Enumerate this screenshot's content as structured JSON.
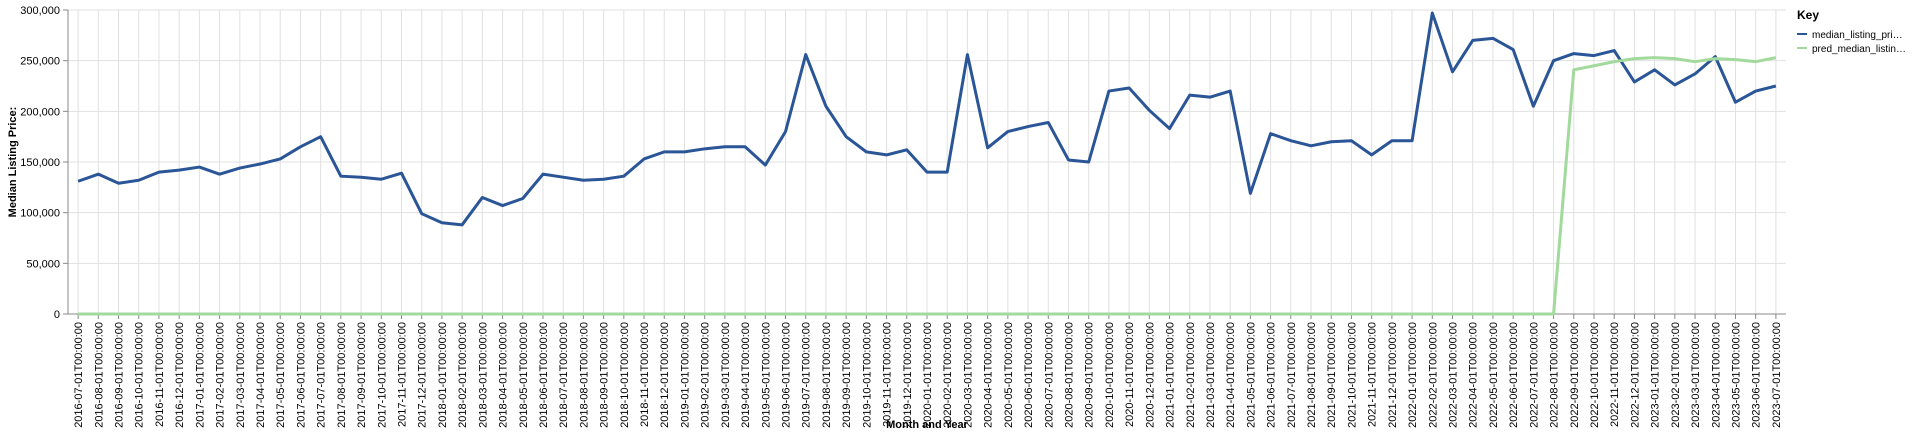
{
  "chart_data": {
    "type": "line",
    "x_label": "Month and Year",
    "y_label": "Median Listing Price:",
    "legend_title": "Key",
    "legend_position": "right",
    "grid": true,
    "categories": [
      "2016-07-01T00:00:00",
      "2016-08-01T00:00:00",
      "2016-09-01T00:00:00",
      "2016-10-01T00:00:00",
      "2016-11-01T00:00:00",
      "2016-12-01T00:00:00",
      "2017-01-01T00:00:00",
      "2017-02-01T00:00:00",
      "2017-03-01T00:00:00",
      "2017-04-01T00:00:00",
      "2017-05-01T00:00:00",
      "2017-06-01T00:00:00",
      "2017-07-01T00:00:00",
      "2017-08-01T00:00:00",
      "2017-09-01T00:00:00",
      "2017-10-01T00:00:00",
      "2017-11-01T00:00:00",
      "2017-12-01T00:00:00",
      "2018-01-01T00:00:00",
      "2018-02-01T00:00:00",
      "2018-03-01T00:00:00",
      "2018-04-01T00:00:00",
      "2018-05-01T00:00:00",
      "2018-06-01T00:00:00",
      "2018-07-01T00:00:00",
      "2018-08-01T00:00:00",
      "2018-09-01T00:00:00",
      "2018-10-01T00:00:00",
      "2018-11-01T00:00:00",
      "2018-12-01T00:00:00",
      "2019-01-01T00:00:00",
      "2019-02-01T00:00:00",
      "2019-03-01T00:00:00",
      "2019-04-01T00:00:00",
      "2019-05-01T00:00:00",
      "2019-06-01T00:00:00",
      "2019-07-01T00:00:00",
      "2019-08-01T00:00:00",
      "2019-09-01T00:00:00",
      "2019-10-01T00:00:00",
      "2019-11-01T00:00:00",
      "2019-12-01T00:00:00",
      "2020-01-01T00:00:00",
      "2020-02-01T00:00:00",
      "2020-03-01T00:00:00",
      "2020-04-01T00:00:00",
      "2020-05-01T00:00:00",
      "2020-06-01T00:00:00",
      "2020-07-01T00:00:00",
      "2020-08-01T00:00:00",
      "2020-09-01T00:00:00",
      "2020-10-01T00:00:00",
      "2020-11-01T00:00:00",
      "2020-12-01T00:00:00",
      "2021-01-01T00:00:00",
      "2021-02-01T00:00:00",
      "2021-03-01T00:00:00",
      "2021-04-01T00:00:00",
      "2021-05-01T00:00:00",
      "2021-06-01T00:00:00",
      "2021-07-01T00:00:00",
      "2021-08-01T00:00:00",
      "2021-09-01T00:00:00",
      "2021-10-01T00:00:00",
      "2021-11-01T00:00:00",
      "2021-12-01T00:00:00",
      "2022-01-01T00:00:00",
      "2022-02-01T00:00:00",
      "2022-03-01T00:00:00",
      "2022-04-01T00:00:00",
      "2022-05-01T00:00:00",
      "2022-06-01T00:00:00",
      "2022-07-01T00:00:00",
      "2022-08-01T00:00:00",
      "2022-09-01T00:00:00",
      "2022-10-01T00:00:00",
      "2022-11-01T00:00:00",
      "2022-12-01T00:00:00",
      "2023-01-01T00:00:00",
      "2023-02-01T00:00:00",
      "2023-03-01T00:00:00",
      "2023-04-01T00:00:00",
      "2023-05-01T00:00:00",
      "2023-06-01T00:00:00",
      "2023-07-01T00:00:00"
    ],
    "series": [
      {
        "name": "median_listing_pri…",
        "color": "#2a5596",
        "values": [
          131000,
          138000,
          129000,
          132000,
          140000,
          142000,
          145000,
          138000,
          144000,
          148000,
          153000,
          165000,
          175000,
          136000,
          135000,
          133000,
          139000,
          99000,
          90000,
          88000,
          115000,
          107000,
          114000,
          138000,
          135000,
          132000,
          133000,
          136000,
          153000,
          160000,
          160000,
          163000,
          165000,
          165000,
          147000,
          180000,
          256000,
          205000,
          175000,
          160000,
          157000,
          162000,
          140000,
          140000,
          256000,
          164000,
          180000,
          185000,
          189000,
          152000,
          150000,
          220000,
          223000,
          201000,
          183000,
          216000,
          214000,
          220000,
          119000,
          178000,
          171000,
          166000,
          170000,
          171000,
          157000,
          171000,
          171000,
          297000,
          239000,
          270000,
          272000,
          261000,
          205000,
          250000,
          257000,
          255000,
          260000,
          229000,
          241000,
          226000,
          237000,
          254000,
          209000,
          220000,
          225000
        ]
      },
      {
        "name": "pred_median_listin…",
        "color": "#a2d99c",
        "values": [
          0,
          0,
          0,
          0,
          0,
          0,
          0,
          0,
          0,
          0,
          0,
          0,
          0,
          0,
          0,
          0,
          0,
          0,
          0,
          0,
          0,
          0,
          0,
          0,
          0,
          0,
          0,
          0,
          0,
          0,
          0,
          0,
          0,
          0,
          0,
          0,
          0,
          0,
          0,
          0,
          0,
          0,
          0,
          0,
          0,
          0,
          0,
          0,
          0,
          0,
          0,
          0,
          0,
          0,
          0,
          0,
          0,
          0,
          0,
          0,
          0,
          0,
          0,
          0,
          0,
          0,
          0,
          0,
          0,
          0,
          0,
          0,
          0,
          0,
          241000,
          245000,
          249000,
          252000,
          253000,
          252000,
          249000,
          252000,
          251000,
          249000,
          253000
        ]
      }
    ],
    "ylim": [
      0,
      300000
    ],
    "yticks": [
      0,
      {
        "value": 50000,
        "label": "50,000"
      },
      {
        "value": 100000,
        "label": "100,000"
      },
      {
        "value": 150000,
        "label": "150,000"
      },
      {
        "value": 200000,
        "label": "200,000"
      },
      {
        "value": 250000,
        "label": "250,000"
      },
      {
        "value": 300000,
        "label": "300,000"
      }
    ]
  }
}
